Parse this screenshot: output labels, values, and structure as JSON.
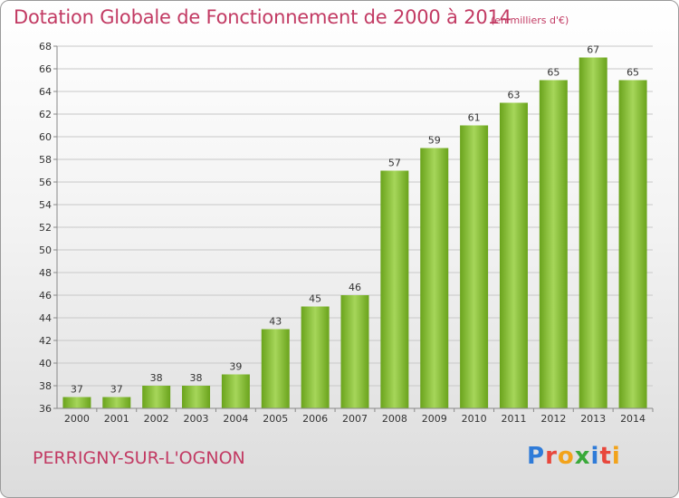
{
  "title": "Dotation Globale de Fonctionnement de 2000 à 2014",
  "subtitle": "(en milliers d'€)",
  "commune": "PERRIGNY-SUR-L'OGNON",
  "logo": {
    "text": "Proxiti",
    "letters": [
      {
        "ch": "P",
        "color": "#2f7bd8"
      },
      {
        "ch": "r",
        "color": "#e8473c"
      },
      {
        "ch": "o",
        "color": "#f2a31b"
      },
      {
        "ch": "x",
        "color": "#3aa93a"
      },
      {
        "ch": "i",
        "color": "#2f7bd8"
      },
      {
        "ch": "t",
        "color": "#e8473c"
      },
      {
        "ch": "i",
        "color": "#f2a31b"
      }
    ]
  },
  "colors": {
    "title": "#c23a63",
    "bar_light": "#a6d65a",
    "bar_dark": "#6aa31c",
    "grid": "#c8c8c8",
    "axis_text": "#333333"
  },
  "chart_data": {
    "type": "bar",
    "categories": [
      "2000",
      "2001",
      "2002",
      "2003",
      "2004",
      "2005",
      "2006",
      "2007",
      "2008",
      "2009",
      "2010",
      "2011",
      "2012",
      "2013",
      "2014"
    ],
    "values": [
      37,
      37,
      38,
      38,
      39,
      43,
      45,
      46,
      57,
      59,
      61,
      63,
      65,
      67,
      65
    ],
    "ylim": [
      36,
      68
    ],
    "yticks": [
      36,
      38,
      40,
      42,
      44,
      46,
      48,
      50,
      52,
      54,
      56,
      58,
      60,
      62,
      64,
      66,
      68
    ],
    "grid": true,
    "xlabel": "",
    "ylabel": ""
  }
}
